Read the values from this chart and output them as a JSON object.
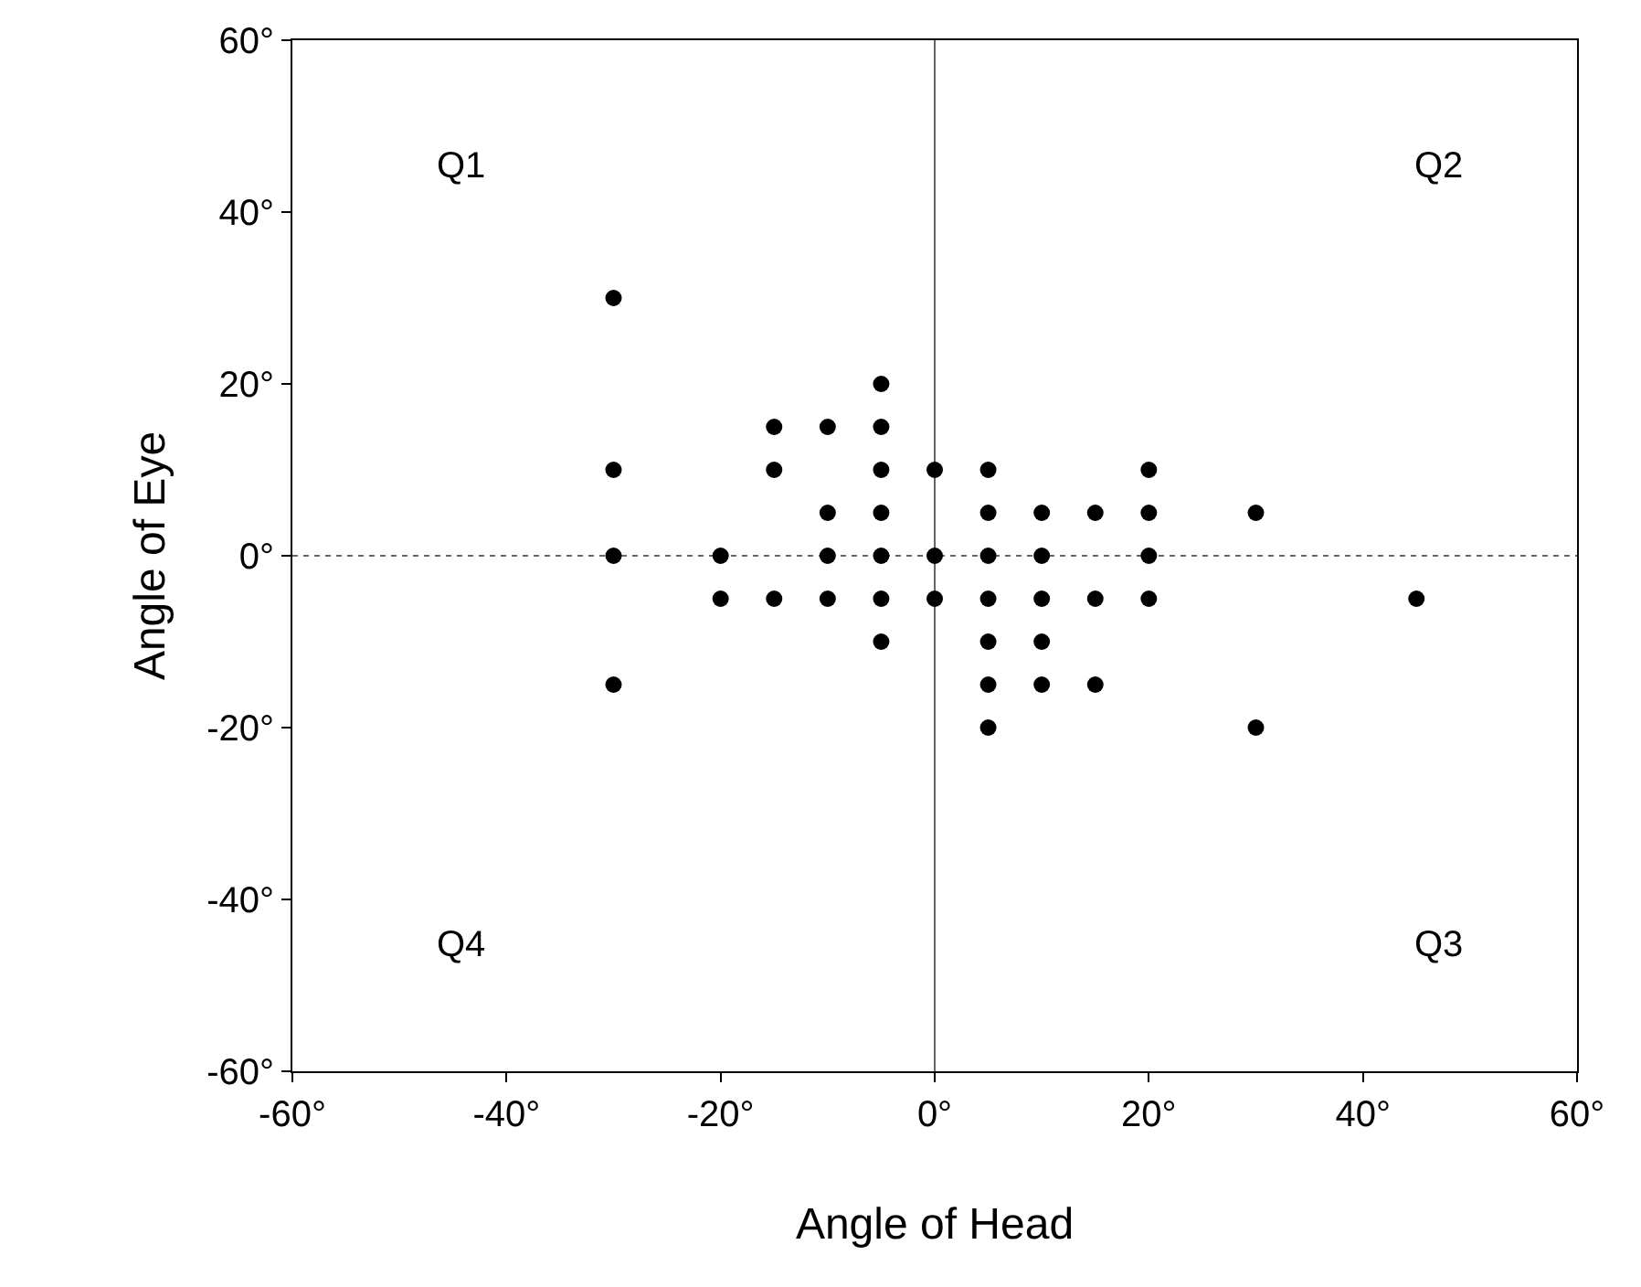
{
  "chart_data": {
    "type": "scatter",
    "xlabel": "Angle of Head",
    "ylabel": "Angle of Eye",
    "x": [
      -30,
      -30,
      -30,
      -30,
      -20,
      -20,
      -15,
      -15,
      -15,
      -10,
      -10,
      -10,
      -10,
      -5,
      -5,
      -5,
      -5,
      -5,
      -5,
      -5,
      0,
      0,
      0,
      5,
      5,
      5,
      5,
      5,
      5,
      5,
      10,
      10,
      10,
      10,
      10,
      15,
      15,
      15,
      20,
      20,
      20,
      20,
      30,
      30,
      45
    ],
    "series": [
      {
        "color": "#000000",
        "values": [
          30,
          10,
          0,
          -15,
          0,
          -5,
          15,
          10,
          -5,
          15,
          5,
          0,
          -5,
          20,
          15,
          10,
          5,
          0,
          -5,
          -10,
          10,
          0,
          -5,
          10,
          5,
          0,
          -5,
          -10,
          -15,
          -20,
          5,
          0,
          -5,
          -10,
          -15,
          5,
          -5,
          -15,
          10,
          5,
          0,
          -5,
          5,
          -20,
          -5
        ]
      }
    ],
    "xlim": [
      -60,
      60
    ],
    "ylim": [
      -60,
      60
    ],
    "xticks": [
      {
        "value": -60,
        "label": "-60°"
      },
      {
        "value": -40,
        "label": "-40°"
      },
      {
        "value": -20,
        "label": "-20°"
      },
      {
        "value": 0,
        "label": "0°"
      },
      {
        "value": 20,
        "label": "20°"
      },
      {
        "value": 40,
        "label": "40°"
      },
      {
        "value": 60,
        "label": "60°"
      }
    ],
    "yticks": [
      {
        "value": -60,
        "label": "-60°"
      },
      {
        "value": -40,
        "label": "-40°"
      },
      {
        "value": -20,
        "label": "-20°"
      },
      {
        "value": 0,
        "label": "0°"
      },
      {
        "value": 20,
        "label": "20°"
      },
      {
        "value": 40,
        "label": "40°"
      },
      {
        "value": 60,
        "label": "60°"
      }
    ],
    "ref_lines": [
      {
        "axis": "x",
        "value": 0,
        "color": "#666666",
        "line_style": "solid"
      },
      {
        "axis": "y",
        "value": 0,
        "color": "#666666",
        "line_style": "dotted"
      }
    ],
    "annotations": [
      "Q1",
      "Q2",
      "Q4",
      "Q3"
    ],
    "marker": "circle",
    "grid": false
  }
}
